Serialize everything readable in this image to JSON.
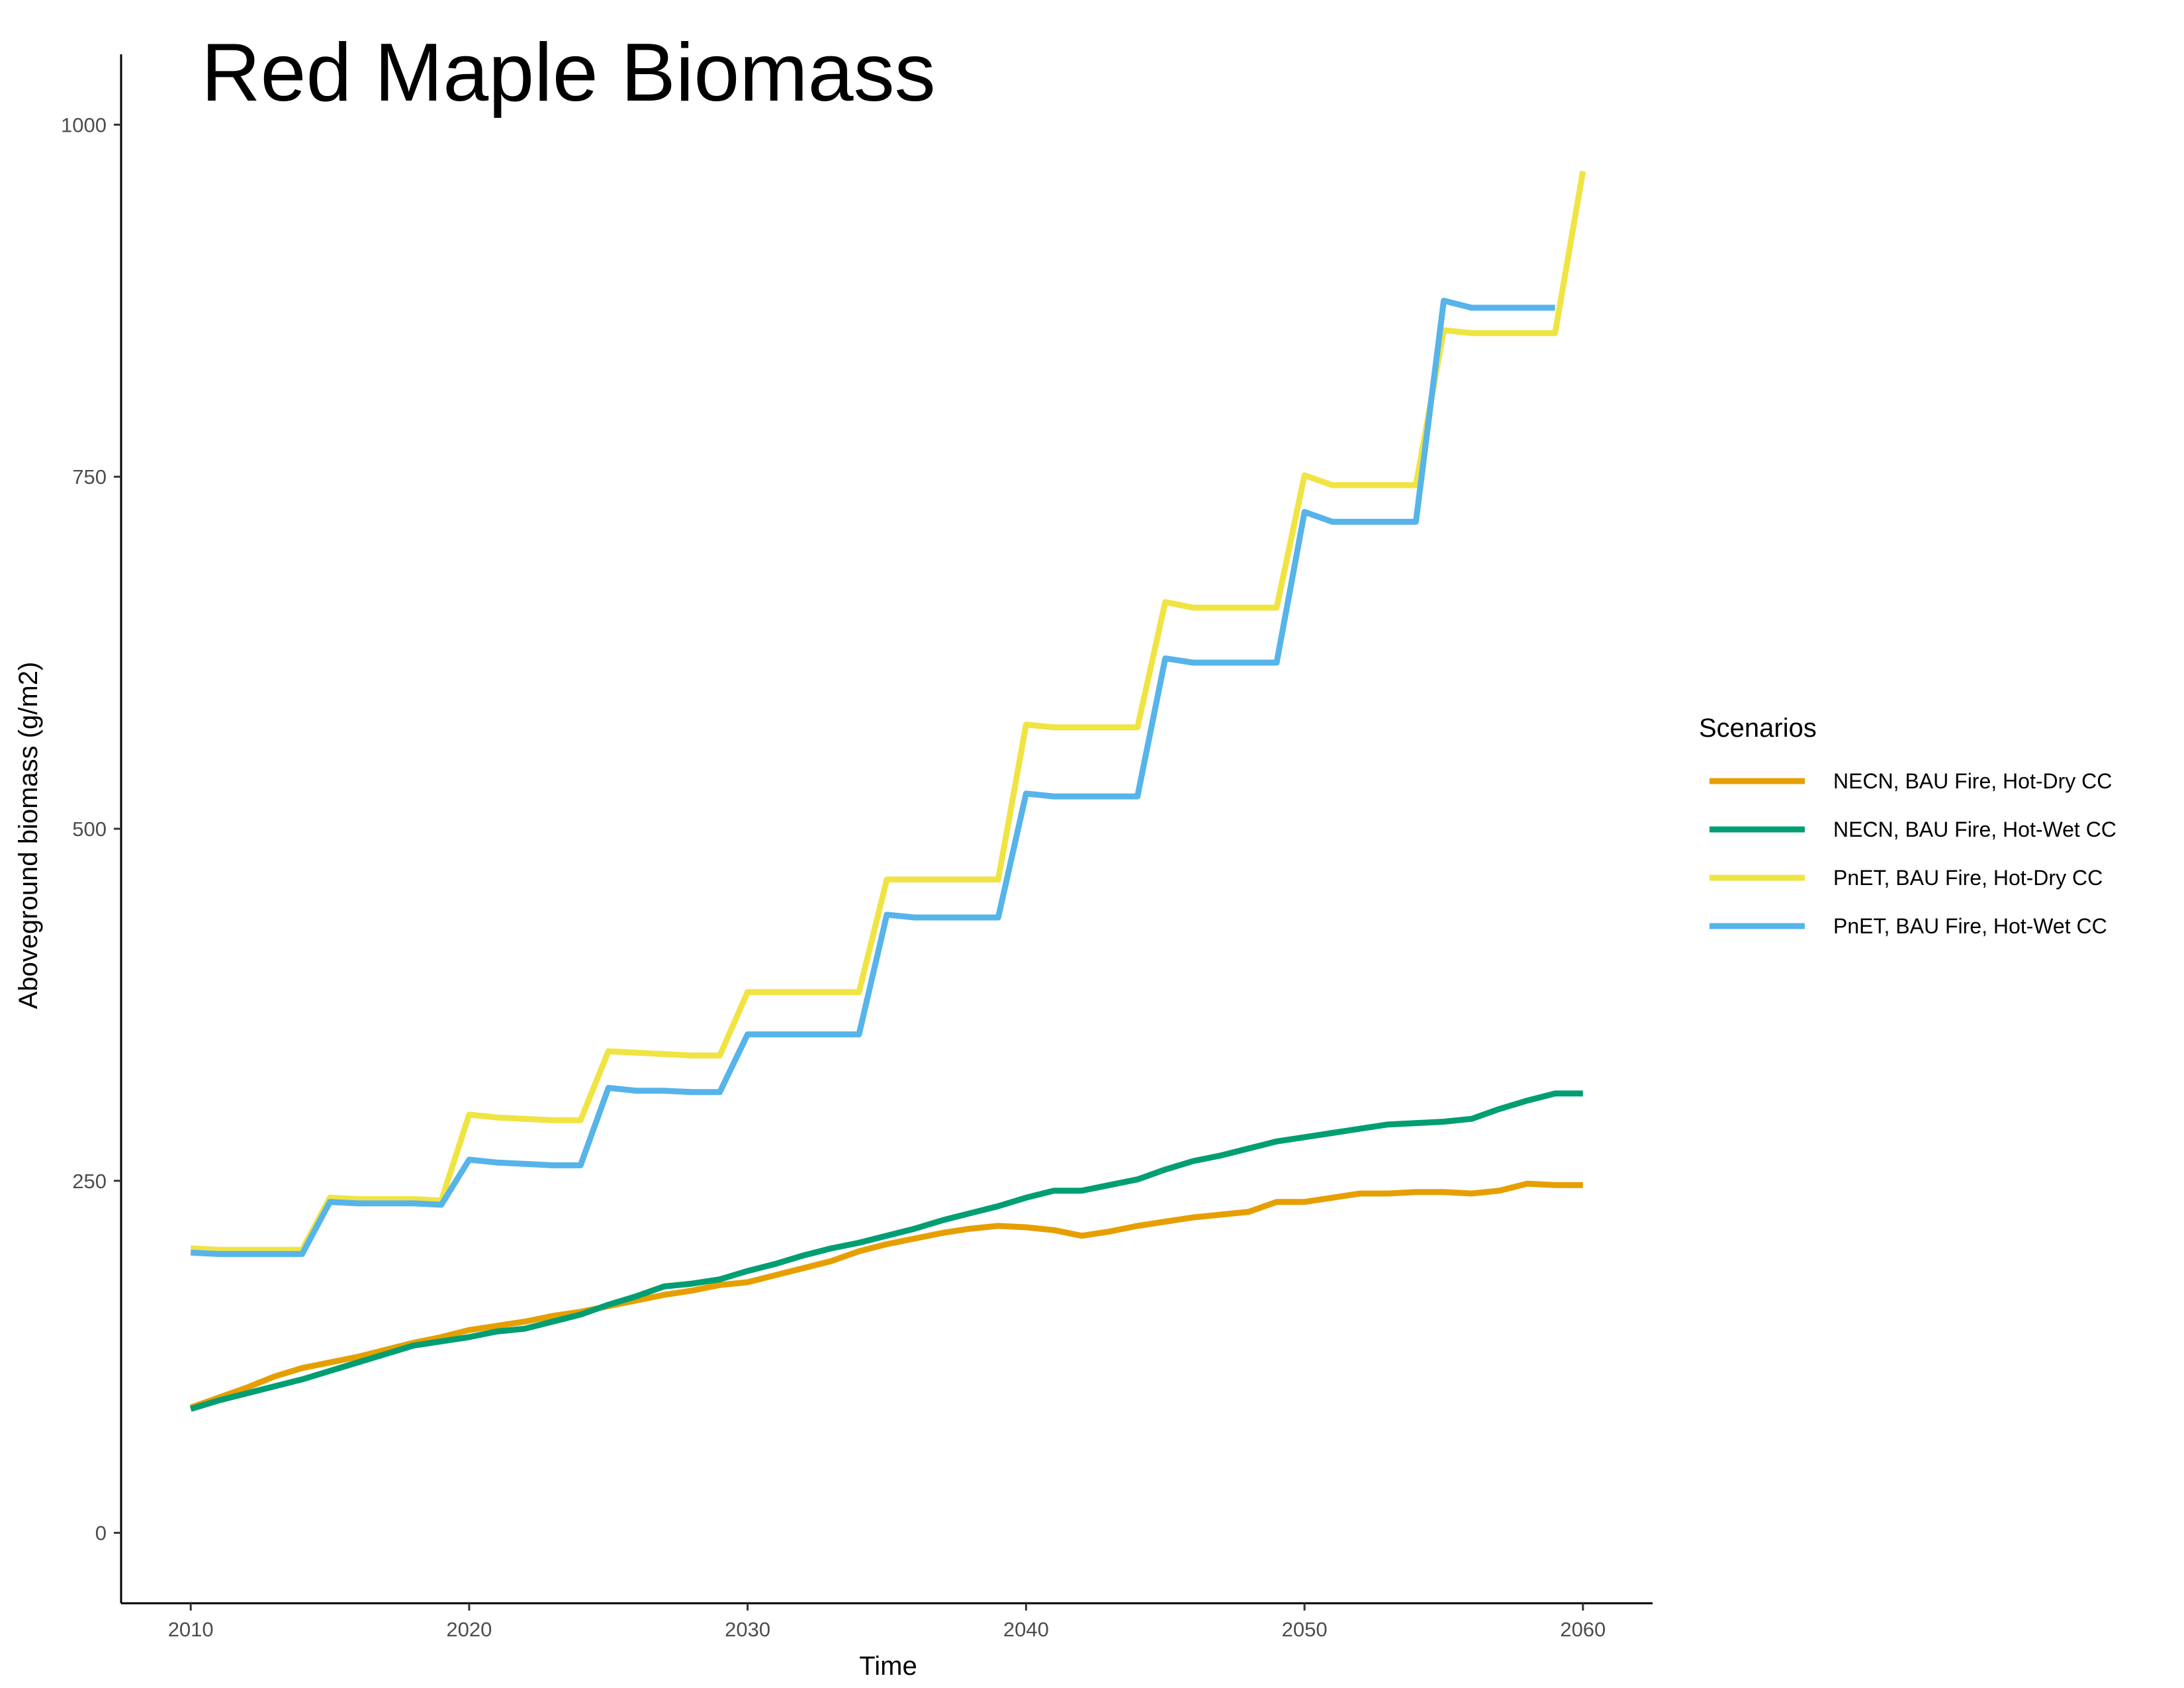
{
  "chart_data": {
    "type": "line",
    "title": "Red Maple Biomass",
    "xlabel": "Time",
    "ylabel": "Aboveground biomass (g/m2)",
    "xlim": [
      2007.5,
      2062.5
    ],
    "ylim": [
      -50,
      1050
    ],
    "x_ticks": [
      2010,
      2020,
      2030,
      2040,
      2050,
      2060
    ],
    "y_ticks": [
      0,
      250,
      500,
      750,
      1000
    ],
    "x_tick_labels": [
      "2010",
      "2020",
      "2030",
      "2040",
      "2050",
      "2060"
    ],
    "y_tick_labels": [
      "0",
      "250",
      "500",
      "750",
      "1000"
    ],
    "grid": false,
    "legend": {
      "title": "Scenarios",
      "position": "right"
    },
    "series": [
      {
        "name": "NECN, BAU Fire, Hot-Dry CC",
        "color": "#E69F00",
        "x": [
          2010,
          2011,
          2012,
          2013,
          2014,
          2015,
          2016,
          2017,
          2018,
          2019,
          2020,
          2021,
          2022,
          2023,
          2024,
          2025,
          2026,
          2027,
          2028,
          2029,
          2030,
          2031,
          2032,
          2033,
          2034,
          2035,
          2036,
          2037,
          2038,
          2039,
          2040,
          2041,
          2042,
          2043,
          2044,
          2045,
          2046,
          2047,
          2048,
          2049,
          2050,
          2051,
          2052,
          2053,
          2054,
          2055,
          2056,
          2057,
          2058,
          2059,
          2060
        ],
        "y": [
          89,
          96,
          103,
          111,
          117,
          121,
          125,
          130,
          135,
          139,
          144,
          147,
          150,
          154,
          157,
          161,
          165,
          169,
          172,
          176,
          178,
          183,
          188,
          193,
          200,
          205,
          209,
          213,
          216,
          218,
          217,
          215,
          211,
          214,
          218,
          221,
          224,
          226,
          228,
          235,
          235,
          238,
          241,
          241,
          242,
          242,
          241,
          243,
          248,
          247,
          247
        ]
      },
      {
        "name": "NECN, BAU Fire, Hot-Wet CC",
        "color": "#009E73",
        "x": [
          2010,
          2011,
          2012,
          2013,
          2014,
          2015,
          2016,
          2017,
          2018,
          2019,
          2020,
          2021,
          2022,
          2023,
          2024,
          2025,
          2026,
          2027,
          2028,
          2029,
          2030,
          2031,
          2032,
          2033,
          2034,
          2035,
          2036,
          2037,
          2038,
          2039,
          2040,
          2041,
          2042,
          2043,
          2044,
          2045,
          2046,
          2047,
          2048,
          2049,
          2050,
          2051,
          2052,
          2053,
          2054,
          2055,
          2056,
          2057,
          2058,
          2059,
          2060
        ],
        "y": [
          88,
          94,
          99,
          104,
          109,
          115,
          121,
          127,
          133,
          136,
          139,
          143,
          145,
          150,
          155,
          162,
          168,
          175,
          177,
          180,
          186,
          191,
          197,
          202,
          206,
          211,
          216,
          222,
          227,
          232,
          238,
          243,
          243,
          247,
          251,
          258,
          264,
          268,
          273,
          278,
          281,
          284,
          287,
          290,
          291,
          292,
          294,
          301,
          307,
          312,
          312
        ]
      },
      {
        "name": "PnET, BAU Fire, Hot-Dry CC",
        "color": "#F0E442",
        "x": [
          2010,
          2011,
          2012,
          2013,
          2014,
          2015,
          2016,
          2017,
          2018,
          2019,
          2020,
          2021,
          2022,
          2023,
          2024,
          2025,
          2026,
          2027,
          2028,
          2029,
          2030,
          2031,
          2032,
          2033,
          2034,
          2035,
          2036,
          2037,
          2038,
          2039,
          2040,
          2041,
          2042,
          2043,
          2044,
          2045,
          2046,
          2047,
          2048,
          2049,
          2050,
          2051,
          2052,
          2053,
          2054,
          2055,
          2056,
          2057,
          2058,
          2059,
          2060
        ],
        "y": [
          202,
          201,
          201,
          201,
          201,
          238,
          237,
          237,
          237,
          236,
          297,
          295,
          294,
          293,
          293,
          342,
          341,
          340,
          339,
          339,
          384,
          384,
          384,
          384,
          384,
          464,
          464,
          464,
          464,
          464,
          574,
          572,
          572,
          572,
          572,
          661,
          657,
          657,
          657,
          657,
          751,
          744,
          744,
          744,
          744,
          854,
          852,
          852,
          852,
          852,
          967
        ]
      },
      {
        "name": "PnET, BAU Fire, Hot-Wet CC",
        "color": "#56B4E9",
        "x": [
          2010,
          2011,
          2012,
          2013,
          2014,
          2015,
          2016,
          2017,
          2018,
          2019,
          2020,
          2021,
          2022,
          2023,
          2024,
          2025,
          2026,
          2027,
          2028,
          2029,
          2030,
          2031,
          2032,
          2033,
          2034,
          2035,
          2036,
          2037,
          2038,
          2039,
          2040,
          2041,
          2042,
          2043,
          2044,
          2045,
          2046,
          2047,
          2048,
          2049,
          2050,
          2051,
          2052,
          2053,
          2054,
          2055,
          2056,
          2057,
          2058,
          2059
        ],
        "y": [
          199,
          198,
          198,
          198,
          198,
          235,
          234,
          234,
          234,
          233,
          265,
          263,
          262,
          261,
          261,
          316,
          314,
          314,
          313,
          313,
          354,
          354,
          354,
          354,
          354,
          439,
          437,
          437,
          437,
          437,
          525,
          523,
          523,
          523,
          523,
          621,
          618,
          618,
          618,
          618,
          725,
          718,
          718,
          718,
          718,
          875,
          870,
          870,
          870,
          870
        ]
      }
    ]
  }
}
